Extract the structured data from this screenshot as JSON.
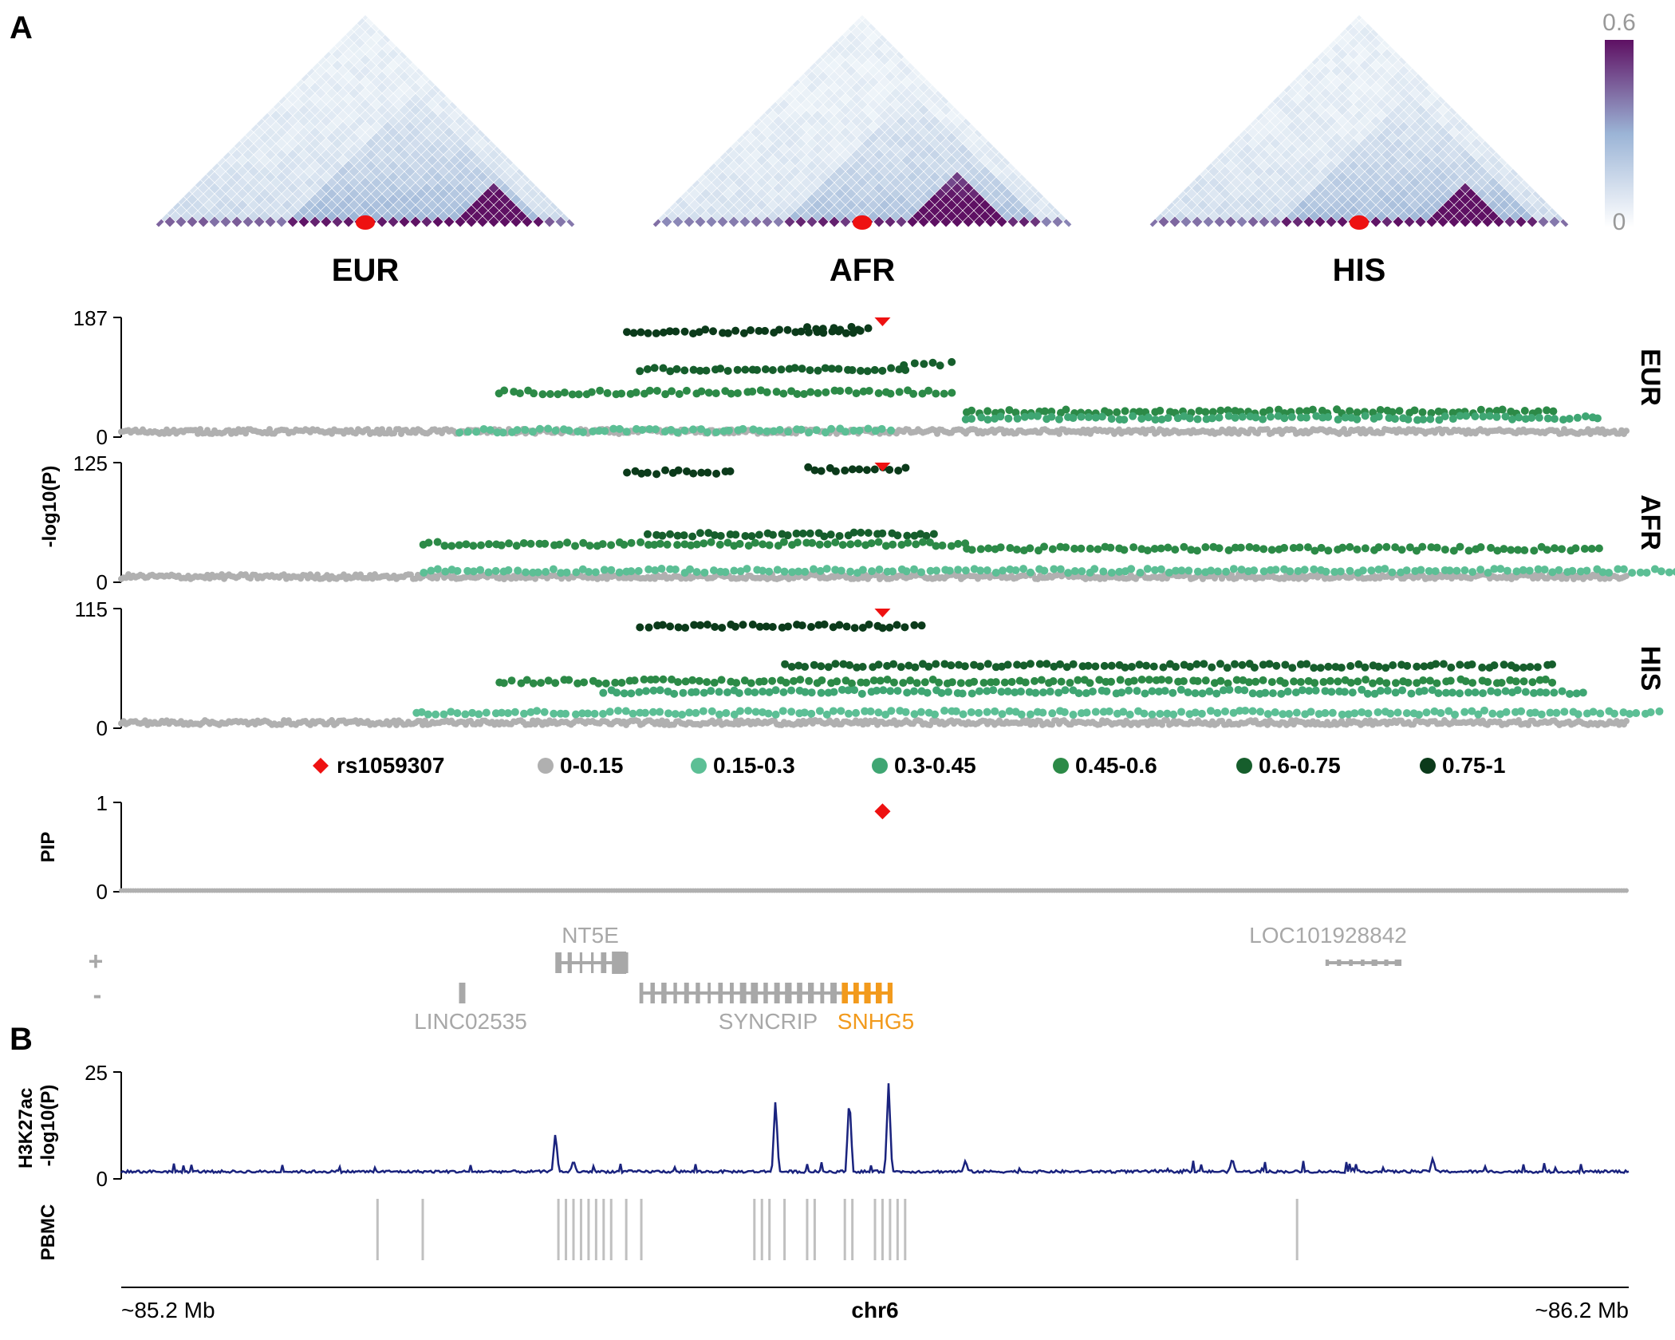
{
  "panels": {
    "a_label": "A",
    "b_label": "B"
  },
  "colors": {
    "marker": "#ee1111",
    "gray": "#b0b0b0",
    "ld_bins": [
      "#b0b0b0",
      "#5cbf95",
      "#3fa673",
      "#2c8a47",
      "#165e2c",
      "#0b3a1a"
    ],
    "chip_line": "#1a237e",
    "snhg5": "#f29a1c",
    "gene_gray": "#a8a8a8",
    "heat_low": "#f3f8fb",
    "heat_mid": "#9bb4d6",
    "heat_high": "#5e1063"
  },
  "ld_heatmaps": [
    {
      "population": "EUR",
      "hotspot": [
        0.72,
        0.85
      ],
      "bg": 0.18
    },
    {
      "population": "AFR",
      "hotspot": [
        0.6,
        0.8
      ],
      "bg": 0.12
    },
    {
      "population": "HIS",
      "hotspot": [
        0.66,
        0.82
      ],
      "bg": 0.16
    }
  ],
  "heat_legend": {
    "max_label": "0.6",
    "min_label": "0"
  },
  "lead_snp": {
    "id": "rs1059307",
    "position_mb": 85.705,
    "pip": 0.9
  },
  "legend": {
    "snp_label": "rs1059307",
    "bins": [
      "0-0.15",
      "0.15-0.3",
      "0.3-0.45",
      "0.45-0.6",
      "0.6-0.75",
      "0.75-1"
    ]
  },
  "chart_data": [
    {
      "type": "scatter",
      "panel": "A",
      "ylabel": "-log10(P)",
      "x_range_mb": [
        85.2,
        86.2
      ],
      "series": [
        {
          "name": "EUR",
          "ymax": 187,
          "ytick_labels": [
            "187",
            "0"
          ],
          "lead_y": 187,
          "clusters": [
            {
              "bin": 5,
              "y": 165,
              "x": [
                85.535,
                85.69
              ]
            },
            {
              "bin": 5,
              "y": 170,
              "x": [
                85.655,
                85.695
              ]
            },
            {
              "bin": 4,
              "y": 105,
              "x": [
                85.545,
                85.72
              ]
            },
            {
              "bin": 4,
              "y": 115,
              "x": [
                85.72,
                85.75
              ]
            },
            {
              "bin": 3,
              "y": 70,
              "x": [
                85.45,
                85.75
              ]
            },
            {
              "bin": 3,
              "y": 40,
              "x": [
                85.76,
                86.15
              ]
            },
            {
              "bin": 2,
              "y": 30,
              "x": [
                85.76,
                86.18
              ]
            },
            {
              "bin": 1,
              "y": 10,
              "x": [
                85.425,
                85.71
              ]
            }
          ]
        },
        {
          "name": "AFR",
          "ymax": 125,
          "ytick_labels": [
            "125",
            "0"
          ],
          "lead_y": 125,
          "clusters": [
            {
              "bin": 5,
              "y": 115,
              "x": [
                85.535,
                85.605
              ]
            },
            {
              "bin": 5,
              "y": 118,
              "x": [
                85.655,
                85.72
              ]
            },
            {
              "bin": 4,
              "y": 50,
              "x": [
                85.55,
                85.74
              ]
            },
            {
              "bin": 3,
              "y": 40,
              "x": [
                85.4,
                85.76
              ]
            },
            {
              "bin": 3,
              "y": 35,
              "x": [
                85.76,
                86.18
              ]
            },
            {
              "bin": 1,
              "y": 12,
              "x": [
                85.4,
                86.25
              ]
            }
          ]
        },
        {
          "name": "HIS",
          "ymax": 115,
          "ytick_labels": [
            "115",
            "0"
          ],
          "lead_y": 115,
          "clusters": [
            {
              "bin": 5,
              "y": 98,
              "x": [
                85.545,
                85.73
              ]
            },
            {
              "bin": 4,
              "y": 60,
              "x": [
                85.64,
                86.15
              ]
            },
            {
              "bin": 3,
              "y": 45,
              "x": [
                85.45,
                86.15
              ]
            },
            {
              "bin": 2,
              "y": 35,
              "x": [
                85.52,
                86.17
              ]
            },
            {
              "bin": 1,
              "y": 15,
              "x": [
                85.395,
                86.22
              ]
            }
          ]
        }
      ]
    },
    {
      "type": "scatter",
      "panel": "A",
      "ylabel": "PIP",
      "ylim": [
        0,
        1
      ],
      "ytick_labels": [
        "1",
        "0"
      ],
      "lead_pip": 0.9,
      "background_pip": 0
    },
    {
      "type": "area",
      "panel": "B",
      "ylabel": "H3K27ac -log10(P)",
      "ylim": [
        0,
        25
      ],
      "ytick_labels": [
        "25",
        "0"
      ],
      "baseline": 1.4,
      "peaks": [
        {
          "x": 85.488,
          "y": 9.5
        },
        {
          "x": 85.5,
          "y": 3
        },
        {
          "x": 85.634,
          "y": 17.5
        },
        {
          "x": 85.683,
          "y": 18.5
        },
        {
          "x": 85.709,
          "y": 21
        },
        {
          "x": 85.76,
          "y": 3
        },
        {
          "x": 85.937,
          "y": 3.5
        },
        {
          "x": 86.07,
          "y": 3.5
        }
      ]
    },
    {
      "type": "table",
      "panel": "B",
      "track": "PBMC",
      "x_mb": [
        85.37,
        85.4,
        85.49,
        85.495,
        85.5,
        85.505,
        85.51,
        85.515,
        85.52,
        85.525,
        85.535,
        85.545,
        85.62,
        85.625,
        85.63,
        85.64,
        85.655,
        85.66,
        85.68,
        85.685,
        85.7,
        85.705,
        85.71,
        85.715,
        85.72,
        85.98
      ]
    }
  ],
  "genes": [
    {
      "name": "NT5E",
      "strand": "+",
      "start": 85.49,
      "end": 85.535,
      "color": "gray"
    },
    {
      "name": "LOC101928842",
      "strand": "+",
      "start": 86.0,
      "end": 86.047,
      "color": "gray"
    },
    {
      "name": "LINC02535",
      "strand": "-",
      "start": 85.425,
      "end": 85.427,
      "color": "gray"
    },
    {
      "name": "SYNCRIP",
      "strand": "-",
      "start": 85.545,
      "end": 85.68,
      "color": "gray"
    },
    {
      "name": "SNHG5",
      "strand": "-",
      "start": 85.68,
      "end": 85.71,
      "color": "orange"
    }
  ],
  "strand_labels": {
    "plus": "+",
    "minus": "-"
  },
  "x_axis": {
    "left": "~85.2 Mb",
    "center": "chr6",
    "right": "~86.2 Mb"
  },
  "track_labels": {
    "pip": "PIP",
    "chip": "H3K27ac\n-log10(P)",
    "pbmc": "PBMC"
  }
}
